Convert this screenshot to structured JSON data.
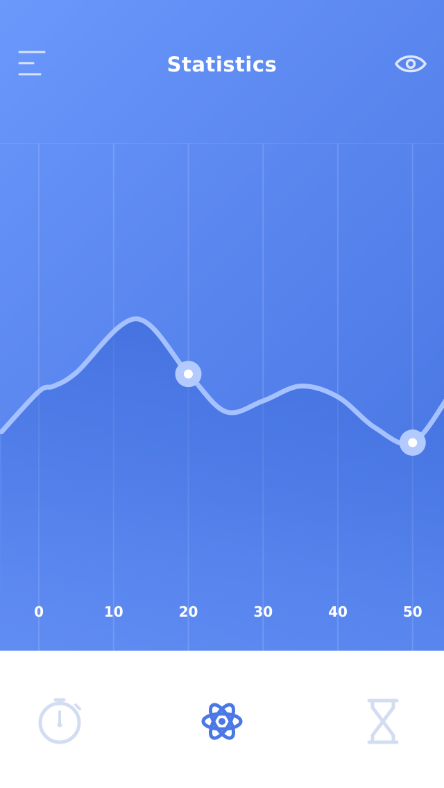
{
  "header": {
    "title": "Statistics",
    "menu_icon": "hamburger-menu-icon",
    "eye_icon": "eye-icon"
  },
  "colors": {
    "accent": "#4a78e6",
    "gradient_light": "#6a98fb",
    "gradient_dark": "#4473e0",
    "line": "#a6c1ff",
    "tab_inactive": "#d3ddf2",
    "tab_active": "#4a78e6"
  },
  "chart_data": {
    "type": "line",
    "x": [
      -5,
      0,
      2,
      5,
      13,
      20,
      25,
      30,
      35,
      40,
      45,
      50,
      55
    ],
    "values": [
      0.1,
      0.4,
      0.44,
      0.54,
      0.94,
      0.53,
      0.25,
      0.33,
      0.44,
      0.36,
      0.13,
      0.02,
      0.38
    ],
    "highlight_x": [
      20,
      50
    ],
    "x_ticks": [
      "0",
      "10",
      "20",
      "30",
      "40",
      "50"
    ],
    "xlim": [
      -5.2,
      54.2
    ],
    "ylim": [
      0,
      1
    ],
    "grid": true,
    "title": "",
    "xlabel": "",
    "ylabel": ""
  },
  "tabs": [
    {
      "name": "tab-timer",
      "icon": "stopwatch-icon",
      "active": false
    },
    {
      "name": "tab-statistics",
      "icon": "atom-icon",
      "active": true
    },
    {
      "name": "tab-history",
      "icon": "hourglass-icon",
      "active": false
    }
  ]
}
